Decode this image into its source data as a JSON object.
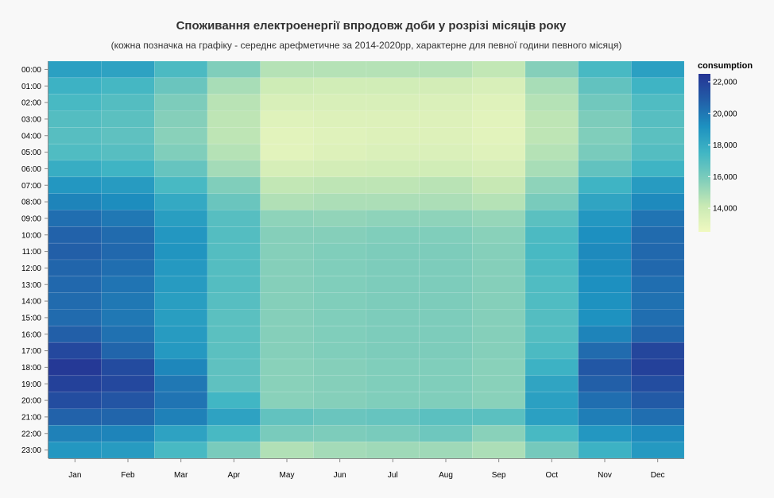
{
  "chart_data": {
    "type": "heatmap",
    "title": "Споживання електроенергії впродовж доби у розрізі місяців року",
    "subtitle": "(кожна позначка на графіку - середнє арефметичне за 2014-2020рр, характерне для певної години певного місяця)",
    "xlabel": "",
    "ylabel": "",
    "x_categories": [
      "Jan",
      "Feb",
      "Mar",
      "Apr",
      "May",
      "Jun",
      "Jul",
      "Aug",
      "Sep",
      "Oct",
      "Nov",
      "Dec"
    ],
    "y_categories": [
      "00:00",
      "01:00",
      "02:00",
      "03:00",
      "04:00",
      "05:00",
      "06:00",
      "07:00",
      "08:00",
      "09:00",
      "10:00",
      "11:00",
      "12:00",
      "13:00",
      "14:00",
      "15:00",
      "16:00",
      "17:00",
      "18:00",
      "19:00",
      "20:00",
      "21:00",
      "22:00",
      "23:00"
    ],
    "values": [
      [
        18500,
        18400,
        17200,
        15800,
        14600,
        14600,
        14600,
        14600,
        14300,
        15700,
        17300,
        18500
      ],
      [
        17700,
        17400,
        16400,
        14900,
        13900,
        13800,
        13800,
        13700,
        13500,
        14900,
        16600,
        17600
      ],
      [
        17300,
        17000,
        15900,
        14500,
        13500,
        13500,
        13500,
        13400,
        13200,
        14600,
        16200,
        17100
      ],
      [
        17000,
        16800,
        15700,
        14400,
        13200,
        13300,
        13300,
        13300,
        13100,
        14400,
        15900,
        16900
      ],
      [
        16900,
        16700,
        15600,
        14400,
        13100,
        13200,
        13300,
        13300,
        13100,
        14400,
        15800,
        16800
      ],
      [
        17100,
        16900,
        15800,
        14600,
        13100,
        13300,
        13400,
        13400,
        13200,
        14600,
        16000,
        17000
      ],
      [
        17900,
        17600,
        16500,
        15000,
        13600,
        13700,
        13800,
        13800,
        13600,
        14900,
        16600,
        17600
      ],
      [
        18900,
        18700,
        17300,
        15800,
        14300,
        14400,
        14400,
        14500,
        14200,
        15500,
        17600,
        18700
      ],
      [
        19600,
        19300,
        18100,
        16400,
        14700,
        14800,
        14800,
        14800,
        14600,
        16000,
        18300,
        19400
      ],
      [
        20300,
        20000,
        18600,
        16900,
        15500,
        15400,
        15500,
        15500,
        15300,
        16800,
        18900,
        20100
      ],
      [
        20700,
        20400,
        18900,
        17000,
        15700,
        15700,
        15800,
        15800,
        15600,
        17200,
        19200,
        20400
      ],
      [
        20800,
        20500,
        19000,
        17000,
        15700,
        15800,
        15900,
        15900,
        15700,
        17300,
        19400,
        20500
      ],
      [
        20600,
        20300,
        18800,
        17000,
        15700,
        15800,
        15900,
        15900,
        15700,
        17200,
        19300,
        20500
      ],
      [
        20500,
        20100,
        18700,
        17000,
        15700,
        15800,
        15900,
        15900,
        15700,
        17100,
        19200,
        20300
      ],
      [
        20400,
        20000,
        18600,
        16900,
        15700,
        15800,
        15900,
        15900,
        15700,
        17100,
        19100,
        20200
      ],
      [
        20400,
        20000,
        18600,
        16800,
        15700,
        15800,
        15900,
        15900,
        15700,
        17000,
        19100,
        20300
      ],
      [
        20800,
        20200,
        18700,
        16800,
        15700,
        15800,
        15900,
        15900,
        15700,
        17000,
        19600,
        20600
      ],
      [
        21700,
        20600,
        18800,
        16800,
        15700,
        15800,
        15900,
        15900,
        15700,
        17200,
        20400,
        21800
      ],
      [
        22300,
        21600,
        19500,
        16700,
        15600,
        15700,
        15800,
        15800,
        15600,
        17700,
        21100,
        22000
      ],
      [
        22000,
        21700,
        20000,
        16700,
        15600,
        15700,
        15800,
        15800,
        15600,
        18300,
        20800,
        21500
      ],
      [
        21500,
        21200,
        20100,
        17500,
        15600,
        15700,
        15800,
        15800,
        15600,
        18500,
        20300,
        21000
      ],
      [
        20700,
        20600,
        19700,
        18400,
        16600,
        16400,
        16500,
        16800,
        16800,
        18500,
        19800,
        20300
      ],
      [
        19700,
        19600,
        18400,
        17300,
        16000,
        15900,
        16000,
        16300,
        15600,
        17300,
        18900,
        19400
      ],
      [
        18900,
        18700,
        17300,
        16000,
        14700,
        15000,
        15100,
        15100,
        14800,
        16100,
        17700,
        18800
      ]
    ],
    "colorscale": {
      "name": "consumption",
      "domain": [
        12500,
        22500
      ],
      "ticks": [
        "22,000",
        "20,000",
        "18,000",
        "16,000",
        "14,000"
      ],
      "tick_values": [
        22000,
        20000,
        18000,
        16000,
        14000
      ],
      "colors": [
        "#f0f9c0",
        "#c8e9b4",
        "#7fcdbb",
        "#41b6c4",
        "#1d91c0",
        "#225ea8",
        "#253494"
      ]
    },
    "grid": false,
    "legend_placement": "right"
  }
}
